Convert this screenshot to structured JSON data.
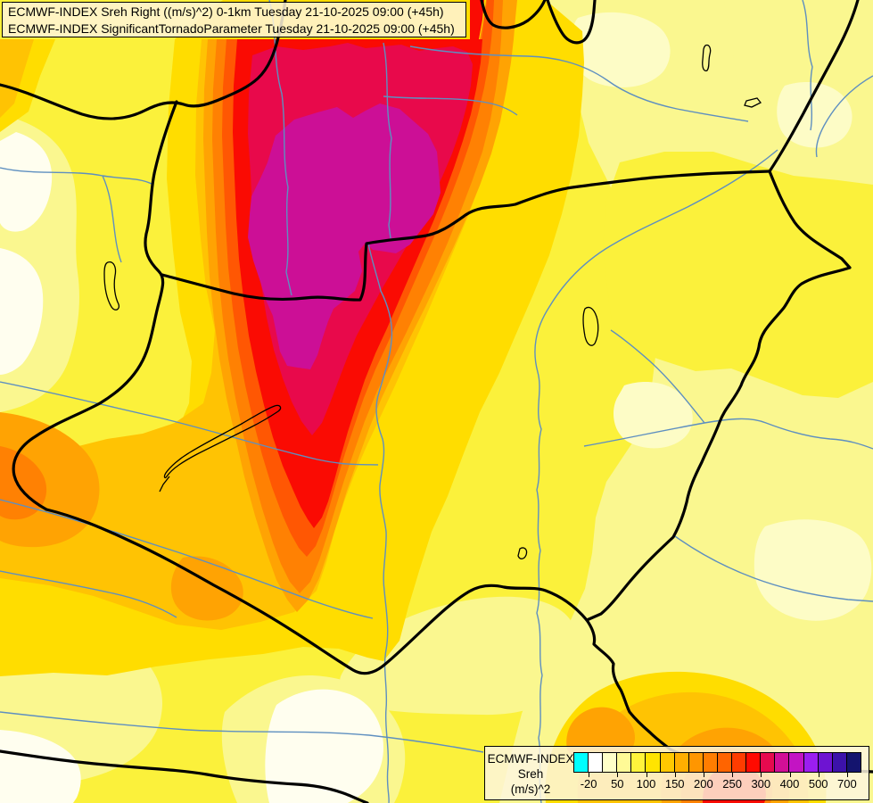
{
  "header": {
    "line1": "ECMWF-INDEX Sreh Right ((m/s)^2) 0-1km Tuesday 21-10-2025 09:00 (+45h)",
    "line2": "ECMWF-INDEX SignificantTornadoParameter Tuesday 21-10-2025 09:00 (+45h)"
  },
  "legend": {
    "product": "ECMWF-INDEX",
    "parameter": "Sreh",
    "units": "(m/s)^2",
    "scale_labels": [
      "-20",
      "50",
      "100",
      "150",
      "200",
      "250",
      "300",
      "400",
      "500",
      "700"
    ],
    "palette": [
      "#00FFFF",
      "#FFFFFF",
      "#FFFFC8",
      "#FFFA96",
      "#FFF43C",
      "#FFE400",
      "#FFC800",
      "#FFAE00",
      "#FF9600",
      "#FF7D00",
      "#FF6400",
      "#FF3C00",
      "#FF0A00",
      "#E60A4E",
      "#D20F96",
      "#C314C3",
      "#9B1EF0",
      "#6E14D2",
      "#3C12AA",
      "#14146E"
    ]
  },
  "colors": {
    "base": "#FBF13B",
    "pale": "#FAF78F",
    "cream": "#FDFCC6",
    "white": "#FFFEEF",
    "gold": "#FFDD00",
    "amber": "#FFC303",
    "orange": "#FFA303",
    "deep_orange": "#FF8103",
    "orange_red": "#FF5703",
    "red": "#FA0B03",
    "crimson": "#E8094B",
    "magenta": "#CC0F96",
    "river": "#5E8FC0",
    "border": "#000000"
  }
}
